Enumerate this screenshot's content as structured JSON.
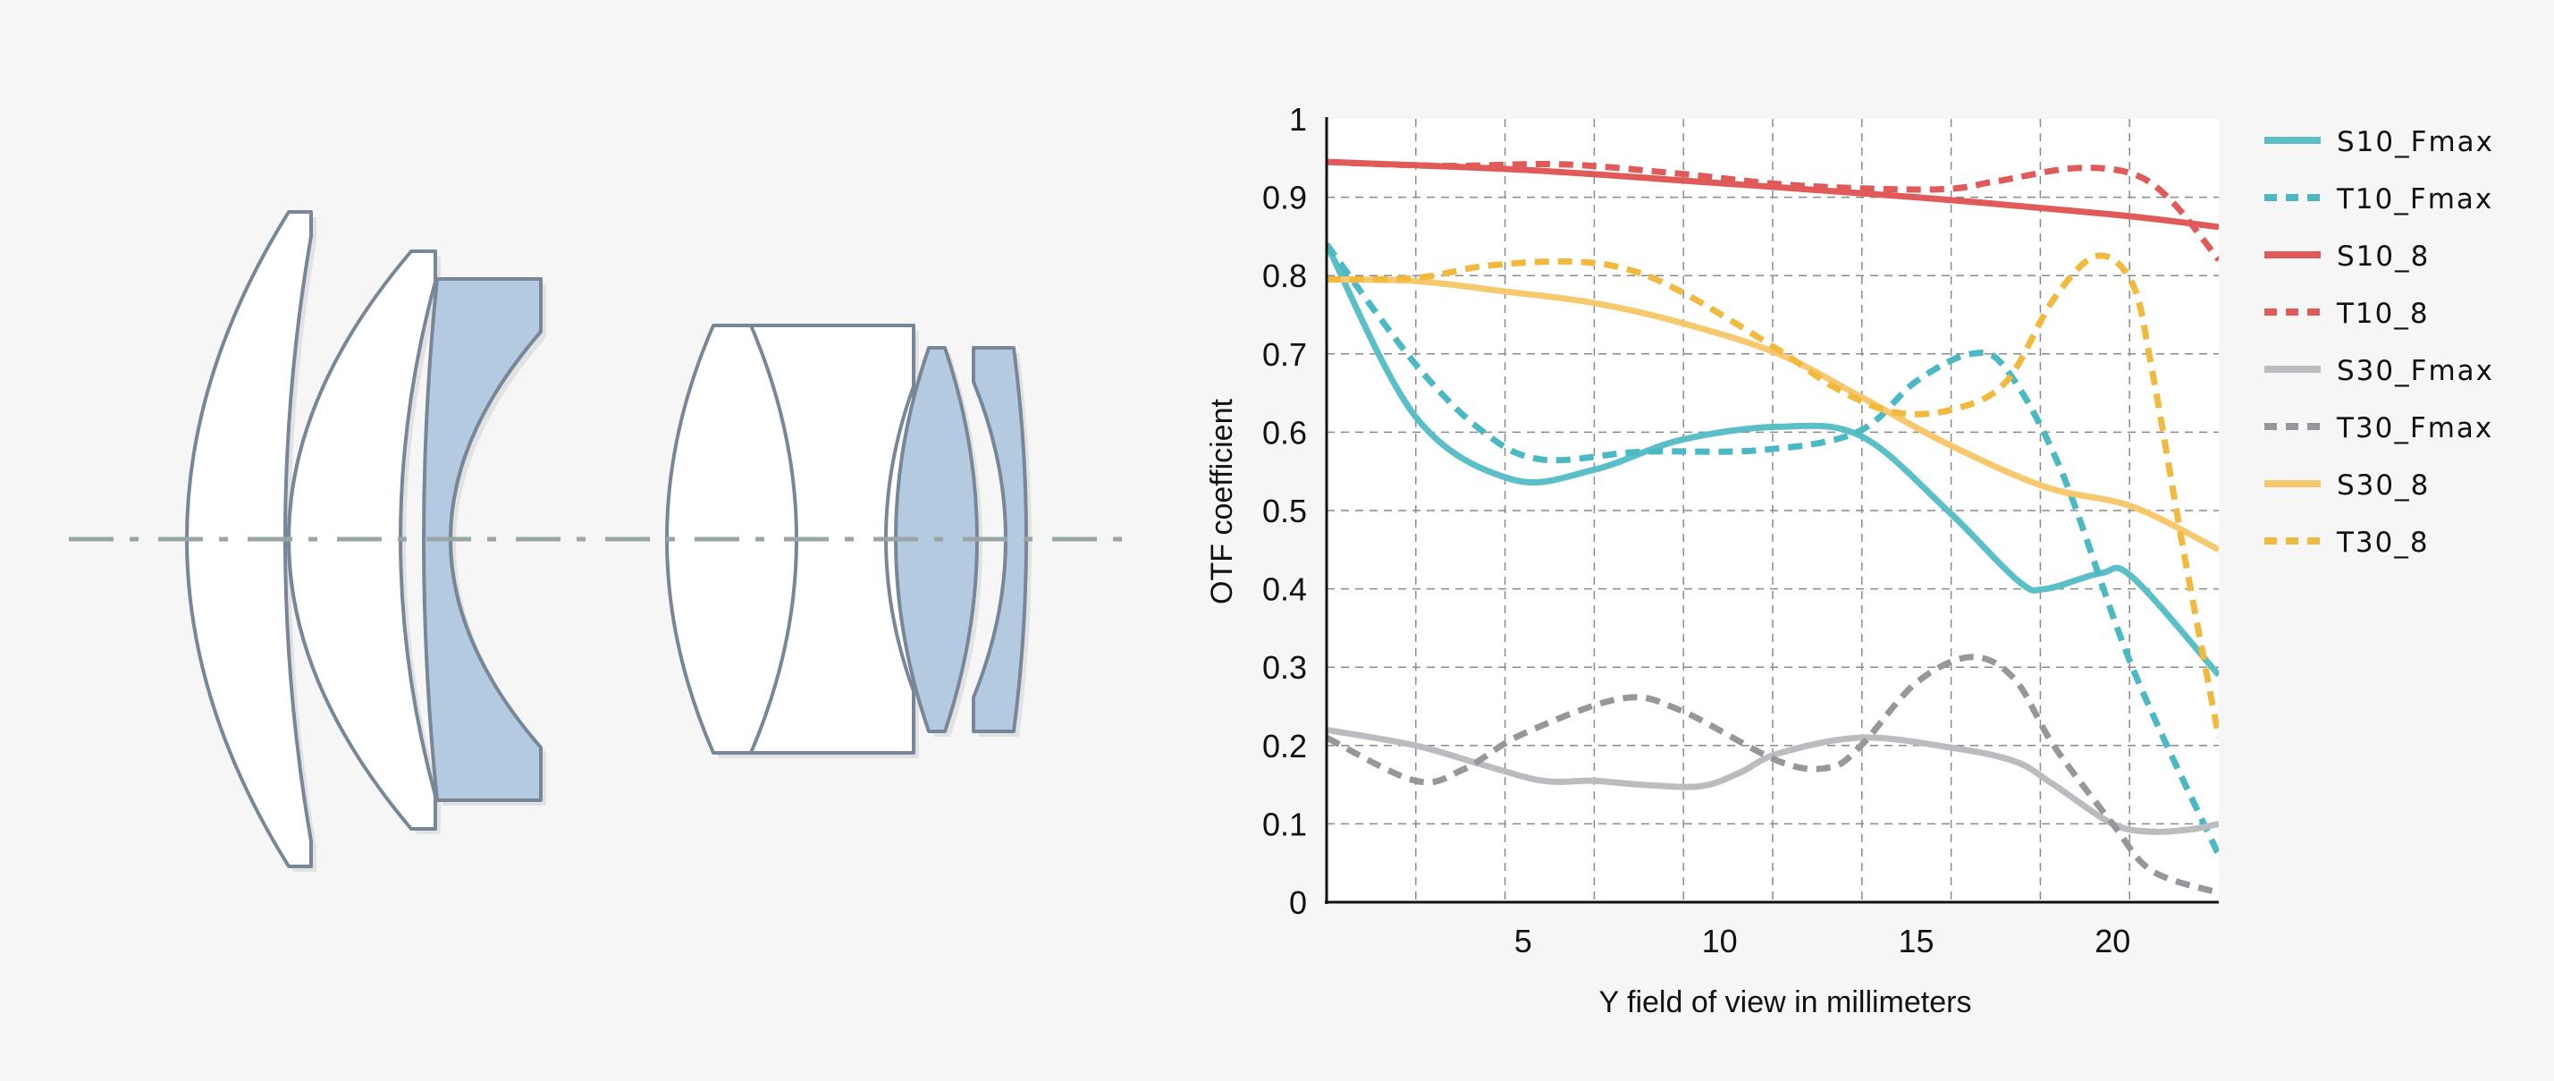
{
  "colors": {
    "background": "#f6f6f6",
    "lens_clear": "#ffffff",
    "lens_blue": "#b4cae0",
    "lens_outline": "#788797",
    "optical_axis": "#9aa6a6"
  },
  "chart_data": {
    "type": "line",
    "title": "",
    "xlabel": "Y field of view in millimeters",
    "ylabel": "OTF coefficient",
    "xlim": [
      0,
      22.7
    ],
    "ylim": [
      0,
      1
    ],
    "x_ticks": [
      "5",
      "10",
      "15",
      "20"
    ],
    "x_tick_values": [
      5,
      10,
      15,
      20
    ],
    "y_ticks": [
      "0",
      "0.1",
      "0.2",
      "0.3",
      "0.4",
      "0.5",
      "0.6",
      "0.7",
      "0.8",
      "0.9",
      "1"
    ],
    "y_tick_values": [
      0,
      0.1,
      0.2,
      0.3,
      0.4,
      0.5,
      0.6,
      0.7,
      0.8,
      0.9,
      1
    ],
    "grid": true,
    "legend_placement": "right",
    "series": [
      {
        "name": "S10_Fmax",
        "color": "#5bbfc7",
        "dashed": false,
        "points": [
          [
            0,
            0.84
          ],
          [
            2.26,
            0.62
          ],
          [
            4.7,
            0.54
          ],
          [
            6.8,
            0.552
          ],
          [
            9,
            0.59
          ],
          [
            11.5,
            0.607
          ],
          [
            13.6,
            0.595
          ],
          [
            15.8,
            0.5
          ],
          [
            17.6,
            0.41
          ],
          [
            18.3,
            0.4
          ],
          [
            19.7,
            0.42
          ],
          [
            20.5,
            0.415
          ],
          [
            22.7,
            0.29
          ]
        ]
      },
      {
        "name": "T10_Fmax",
        "color": "#4bb9c4",
        "dashed": true,
        "points": [
          [
            0,
            0.84
          ],
          [
            2.26,
            0.687
          ],
          [
            4,
            0.6
          ],
          [
            5.5,
            0.565
          ],
          [
            8,
            0.575
          ],
          [
            11,
            0.577
          ],
          [
            13.5,
            0.6
          ],
          [
            15,
            0.665
          ],
          [
            16.4,
            0.7
          ],
          [
            17.3,
            0.68
          ],
          [
            18.7,
            0.55
          ],
          [
            20.5,
            0.3
          ],
          [
            22.7,
            0.06
          ]
        ]
      },
      {
        "name": "S10_8",
        "color": "#e05a5a",
        "dashed": false,
        "points": [
          [
            0,
            0.945
          ],
          [
            5,
            0.935
          ],
          [
            10,
            0.918
          ],
          [
            15,
            0.9
          ],
          [
            20,
            0.878
          ],
          [
            22.7,
            0.862
          ]
        ]
      },
      {
        "name": "T10_8",
        "color": "#e05a5a",
        "dashed": true,
        "points": [
          [
            0,
            0.945
          ],
          [
            3,
            0.94
          ],
          [
            6,
            0.942
          ],
          [
            9,
            0.93
          ],
          [
            12,
            0.915
          ],
          [
            15.5,
            0.91
          ],
          [
            17,
            0.92
          ],
          [
            19,
            0.937
          ],
          [
            20.5,
            0.93
          ],
          [
            21.5,
            0.895
          ],
          [
            22.7,
            0.82
          ]
        ]
      },
      {
        "name": "S30_Fmax",
        "color": "#bbbcbf",
        "dashed": false,
        "points": [
          [
            0,
            0.22
          ],
          [
            2.26,
            0.2
          ],
          [
            4,
            0.175
          ],
          [
            5.5,
            0.155
          ],
          [
            6.8,
            0.155
          ],
          [
            8,
            0.15
          ],
          [
            9.5,
            0.148
          ],
          [
            10.5,
            0.165
          ],
          [
            11.5,
            0.19
          ],
          [
            13.6,
            0.21
          ],
          [
            15.8,
            0.198
          ],
          [
            17.5,
            0.18
          ],
          [
            18.5,
            0.15
          ],
          [
            20,
            0.1
          ],
          [
            21,
            0.09
          ],
          [
            22,
            0.093
          ],
          [
            22.7,
            0.1
          ]
        ]
      },
      {
        "name": "T30_Fmax",
        "color": "#96979b",
        "dashed": true,
        "points": [
          [
            0,
            0.21
          ],
          [
            2.26,
            0.155
          ],
          [
            3.5,
            0.17
          ],
          [
            5,
            0.215
          ],
          [
            7.5,
            0.26
          ],
          [
            9,
            0.245
          ],
          [
            11.5,
            0.18
          ],
          [
            12.8,
            0.172
          ],
          [
            13.6,
            0.2
          ],
          [
            15,
            0.28
          ],
          [
            16.4,
            0.313
          ],
          [
            17.5,
            0.285
          ],
          [
            18.5,
            0.2
          ],
          [
            20,
            0.1
          ],
          [
            21,
            0.04
          ],
          [
            22.7,
            0.012
          ]
        ]
      },
      {
        "name": "S30_8",
        "color": "#f6c96e",
        "dashed": false,
        "points": [
          [
            0,
            0.795
          ],
          [
            2.26,
            0.793
          ],
          [
            4.5,
            0.78
          ],
          [
            6.8,
            0.765
          ],
          [
            9,
            0.74
          ],
          [
            11.5,
            0.7
          ],
          [
            13.6,
            0.645
          ],
          [
            15.8,
            0.585
          ],
          [
            18.3,
            0.53
          ],
          [
            20.5,
            0.505
          ],
          [
            22.7,
            0.45
          ]
        ]
      },
      {
        "name": "T30_8",
        "color": "#f2b93f",
        "dashed": true,
        "points": [
          [
            0,
            0.795
          ],
          [
            2.26,
            0.797
          ],
          [
            4,
            0.812
          ],
          [
            6,
            0.818
          ],
          [
            7.5,
            0.81
          ],
          [
            9,
            0.78
          ],
          [
            11.5,
            0.705
          ],
          [
            13,
            0.655
          ],
          [
            14.5,
            0.625
          ],
          [
            16,
            0.63
          ],
          [
            17.3,
            0.665
          ],
          [
            18.5,
            0.77
          ],
          [
            19.6,
            0.825
          ],
          [
            20.5,
            0.79
          ],
          [
            21,
            0.68
          ],
          [
            21.8,
            0.45
          ],
          [
            22.7,
            0.21
          ]
        ]
      }
    ]
  }
}
